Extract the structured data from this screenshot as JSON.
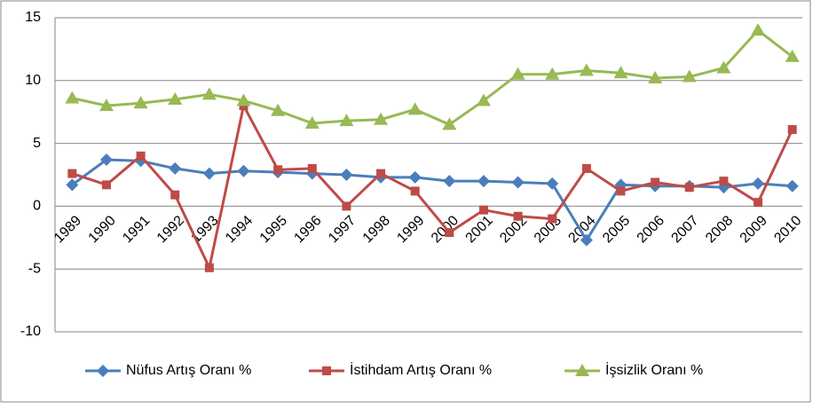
{
  "chart_data": {
    "type": "line",
    "categories": [
      "1989",
      "1990",
      "1991",
      "1992",
      "1993",
      "1994",
      "1995",
      "1996",
      "1997",
      "1998",
      "1999",
      "2000",
      "2001",
      "2002",
      "2003",
      "2004",
      "2005",
      "2006",
      "2007",
      "2008",
      "2009",
      "2010"
    ],
    "series": [
      {
        "name": "Nüfus Artış Oranı %",
        "color": "#4a7ebb",
        "marker": "diamond",
        "values": [
          1.7,
          3.7,
          3.6,
          3.0,
          2.6,
          2.8,
          2.7,
          2.6,
          2.5,
          2.3,
          2.3,
          2.0,
          2.0,
          1.9,
          1.8,
          -2.7,
          1.7,
          1.6,
          1.6,
          1.5,
          1.8,
          1.6
        ]
      },
      {
        "name": "İstihdam Artış Oranı %",
        "color": "#be4b48",
        "marker": "square",
        "values": [
          2.6,
          1.7,
          4.0,
          0.9,
          -4.9,
          8.0,
          2.9,
          3.0,
          0.0,
          2.6,
          1.2,
          -2.1,
          -0.3,
          -0.8,
          -1.0,
          3.0,
          1.2,
          1.9,
          1.5,
          2.0,
          0.3,
          6.1
        ]
      },
      {
        "name": "İşsizlik Oranı %",
        "color": "#98b954",
        "marker": "triangle",
        "values": [
          8.6,
          8.0,
          8.2,
          8.5,
          8.9,
          8.4,
          7.6,
          6.6,
          6.8,
          6.9,
          7.7,
          6.5,
          8.4,
          10.5,
          10.5,
          10.8,
          10.6,
          10.2,
          10.3,
          11.0,
          14.0,
          11.9
        ]
      }
    ],
    "ylim": [
      -10,
      15
    ],
    "yticks": [
      -10,
      -5,
      0,
      5,
      10,
      15
    ],
    "grid": true,
    "legend": "bottom"
  }
}
